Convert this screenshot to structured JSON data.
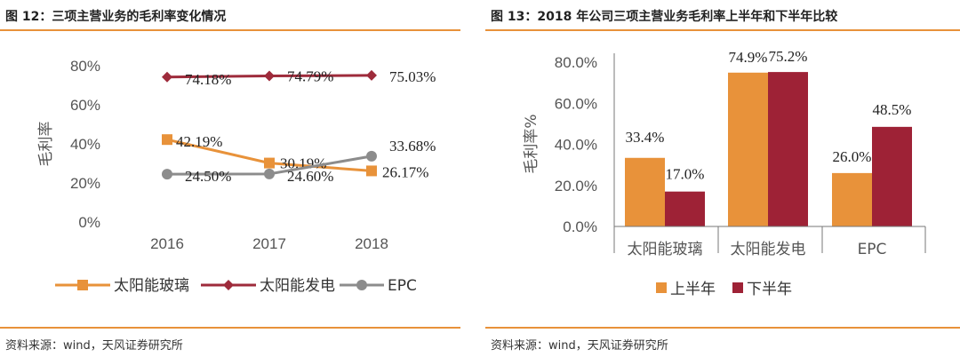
{
  "left": {
    "title": "图 12：三项主营业务的毛利率变化情况",
    "source": "资料来源：wind，天风证券研究所",
    "chart_data": {
      "type": "line",
      "x": [
        "2016",
        "2017",
        "2018"
      ],
      "ylabel": "毛利率",
      "ylim": [
        0,
        80
      ],
      "yticks": [
        "0%",
        "20%",
        "40%",
        "60%",
        "80%"
      ],
      "grid": false,
      "legend_position": "bottom",
      "series": [
        {
          "name": "太阳能玻璃",
          "values": [
            42.19,
            30.19,
            26.17
          ],
          "labels": [
            "42.19%",
            "30.19%",
            "26.17%"
          ],
          "color": "#E8923A",
          "marker": "square"
        },
        {
          "name": "太阳能发电",
          "values": [
            74.18,
            74.79,
            75.03
          ],
          "labels": [
            "74.18%",
            "74.79%",
            "75.03%"
          ],
          "color": "#9E2B3B",
          "marker": "diamond"
        },
        {
          "name": "EPC",
          "values": [
            24.5,
            24.6,
            33.68
          ],
          "labels": [
            "24.50%",
            "24.60%",
            "33.68%"
          ],
          "color": "#8C8C8C",
          "marker": "circle"
        }
      ]
    }
  },
  "right": {
    "title": "图 13：2018 年公司三项主营业务毛利率上半年和下半年比较",
    "source": "资料来源：wind，天风证券研究所",
    "chart_data": {
      "type": "bar",
      "categories": [
        "太阳能玻璃",
        "太阳能发电",
        "EPC"
      ],
      "ylabel": "毛利率%",
      "ylim": [
        0,
        80
      ],
      "yticks": [
        "0.0%",
        "20.0%",
        "40.0%",
        "60.0%",
        "80.0%"
      ],
      "grid": false,
      "legend_position": "bottom",
      "series": [
        {
          "name": "上半年",
          "values": [
            33.4,
            74.9,
            26.0
          ],
          "labels": [
            "33.4%",
            "74.9%",
            "26.0%"
          ],
          "color": "#E8923A"
        },
        {
          "name": "下半年",
          "values": [
            17.0,
            75.2,
            48.5
          ],
          "labels": [
            "17.0%",
            "75.2%",
            "48.5%"
          ],
          "color": "#9E2236"
        }
      ]
    }
  }
}
